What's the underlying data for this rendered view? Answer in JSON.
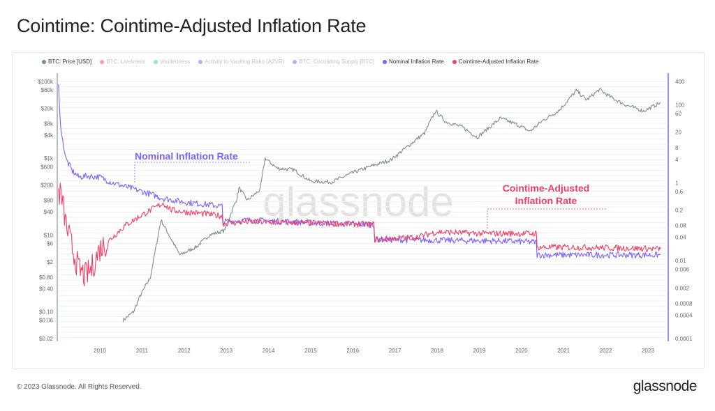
{
  "title": "Cointime: Cointime-Adjusted Inflation Rate",
  "footer": "© 2023 Glassnode. All Rights Reserved.",
  "logo": "glassnode",
  "watermark": "glassnode",
  "legend": [
    {
      "label": "BTC: Price [USD]",
      "color": "#7d8c8c",
      "active": true
    },
    {
      "label": "BTC: Liveliness",
      "color": "#f0466a",
      "active": false
    },
    {
      "label": "Vaultedness",
      "color": "#3ad08c",
      "active": false
    },
    {
      "label": "Activity to Vaulting Ratio (A2VR)",
      "color": "#7b61ff",
      "active": false
    },
    {
      "label": "BTC: Circulating Supply [BTC]",
      "color": "#7b61ff",
      "active": false
    },
    {
      "label": "Nominal Inflation Rate",
      "color": "#7b61ff",
      "active": true
    },
    {
      "label": "Cointime-Adjusted Inflation Rate",
      "color": "#f03e66",
      "active": true
    }
  ],
  "annotations": {
    "nominal": "Nominal Inflation Rate",
    "cointime_line1": "Cointime-Adjusted",
    "cointime_line2": "Inflation Rate"
  },
  "chart_data": {
    "type": "line",
    "x_ticks": [
      "2010",
      "2011",
      "2012",
      "2013",
      "2014",
      "2015",
      "2016",
      "2017",
      "2018",
      "2019",
      "2020",
      "2021",
      "2022",
      "2023"
    ],
    "xlim": [
      2009.0,
      2023.45
    ],
    "left_axis": {
      "scale": "log",
      "range": [
        0.02,
        100000
      ],
      "ticks": [
        "$100k",
        "$60k",
        "$20k",
        "$8k",
        "$4k",
        "$1k",
        "$600",
        "$200",
        "$80",
        "$40",
        "$10",
        "$6",
        "$2",
        "$0.80",
        "$0.40",
        "$0.10",
        "$0.06",
        "$0.02"
      ],
      "tick_values": [
        100000,
        60000,
        20000,
        8000,
        4000,
        1000,
        600,
        200,
        80,
        40,
        10,
        6,
        2,
        0.8,
        0.4,
        0.1,
        0.06,
        0.02
      ]
    },
    "right_axis": {
      "scale": "log",
      "range": [
        0.0001,
        400
      ],
      "ticks": [
        "400",
        "100",
        "60",
        "20",
        "8",
        "4",
        "1",
        "0.6",
        "0.2",
        "0.08",
        "0.04",
        "0.01",
        "0.006",
        "0.002",
        "0.0008",
        "0.0004",
        "0.0001"
      ],
      "tick_values": [
        400,
        100,
        60,
        20,
        8,
        4,
        1,
        0.6,
        0.2,
        0.08,
        0.04,
        0.01,
        0.006,
        0.002,
        0.0008,
        0.0004,
        0.0001
      ]
    },
    "grid": true,
    "legend_placement": "top",
    "series": [
      {
        "name": "BTC: Price [USD]",
        "axis": "left",
        "color": "#7d8c8c",
        "x": [
          2010.55,
          2010.8,
          2010.95,
          2011.2,
          2011.45,
          2011.6,
          2011.9,
          2012.3,
          2012.6,
          2012.95,
          2013.25,
          2013.3,
          2013.5,
          2013.8,
          2013.92,
          2014.2,
          2014.6,
          2015.0,
          2015.5,
          2016.0,
          2016.5,
          2016.9,
          2017.4,
          2017.7,
          2017.96,
          2018.2,
          2018.6,
          2018.95,
          2019.5,
          2019.9,
          2020.2,
          2020.5,
          2020.9,
          2021.3,
          2021.55,
          2021.85,
          2022.1,
          2022.45,
          2022.9,
          2023.1,
          2023.3
        ],
        "y": [
          0.06,
          0.1,
          0.25,
          0.8,
          25,
          12,
          3,
          5,
          10,
          13,
          90,
          170,
          80,
          150,
          1000,
          550,
          500,
          250,
          240,
          420,
          660,
          900,
          2500,
          4500,
          17000,
          9000,
          6500,
          3500,
          11000,
          7500,
          5000,
          9500,
          18000,
          58000,
          33000,
          62000,
          40000,
          25000,
          17000,
          22000,
          28000
        ]
      },
      {
        "name": "Nominal Inflation Rate",
        "axis": "right",
        "color": "#7b61ff",
        "x": [
          2009.02,
          2009.05,
          2009.1,
          2009.2,
          2009.35,
          2009.5,
          2009.7,
          2010.0,
          2010.3,
          2010.6,
          2011.0,
          2011.5,
          2012.0,
          2012.5,
          2012.9,
          2012.92,
          2013.5,
          2014.5,
          2015.5,
          2016.5,
          2016.52,
          2017.5,
          2018.5,
          2019.5,
          2020.35,
          2020.37,
          2021.5,
          2022.5,
          2023.3
        ],
        "y": [
          300,
          60,
          15,
          4,
          2,
          1.4,
          1.5,
          1.4,
          1.0,
          0.8,
          0.6,
          0.4,
          0.32,
          0.28,
          0.25,
          0.1,
          0.11,
          0.1,
          0.09,
          0.085,
          0.035,
          0.034,
          0.033,
          0.032,
          0.03,
          0.014,
          0.014,
          0.014,
          0.014
        ]
      },
      {
        "name": "Cointime-Adjusted Inflation Rate",
        "axis": "right",
        "color": "#f03e66",
        "x": [
          2009.02,
          2009.1,
          2009.2,
          2009.35,
          2009.5,
          2009.65,
          2009.8,
          2010.0,
          2010.3,
          2010.6,
          2011.0,
          2011.5,
          2011.7,
          2012.0,
          2012.5,
          2012.9,
          2012.92,
          2013.5,
          2014.5,
          2015.5,
          2016.5,
          2016.52,
          2017.5,
          2018.0,
          2019.0,
          2020.35,
          2020.37,
          2021.5,
          2022.5,
          2023.3
        ],
        "y": [
          0.6,
          0.4,
          0.08,
          0.02,
          0.006,
          0.004,
          0.006,
          0.02,
          0.04,
          0.08,
          0.15,
          0.3,
          0.2,
          0.18,
          0.16,
          0.14,
          0.09,
          0.1,
          0.095,
          0.09,
          0.085,
          0.035,
          0.04,
          0.055,
          0.05,
          0.05,
          0.022,
          0.022,
          0.021,
          0.02
        ]
      }
    ]
  }
}
